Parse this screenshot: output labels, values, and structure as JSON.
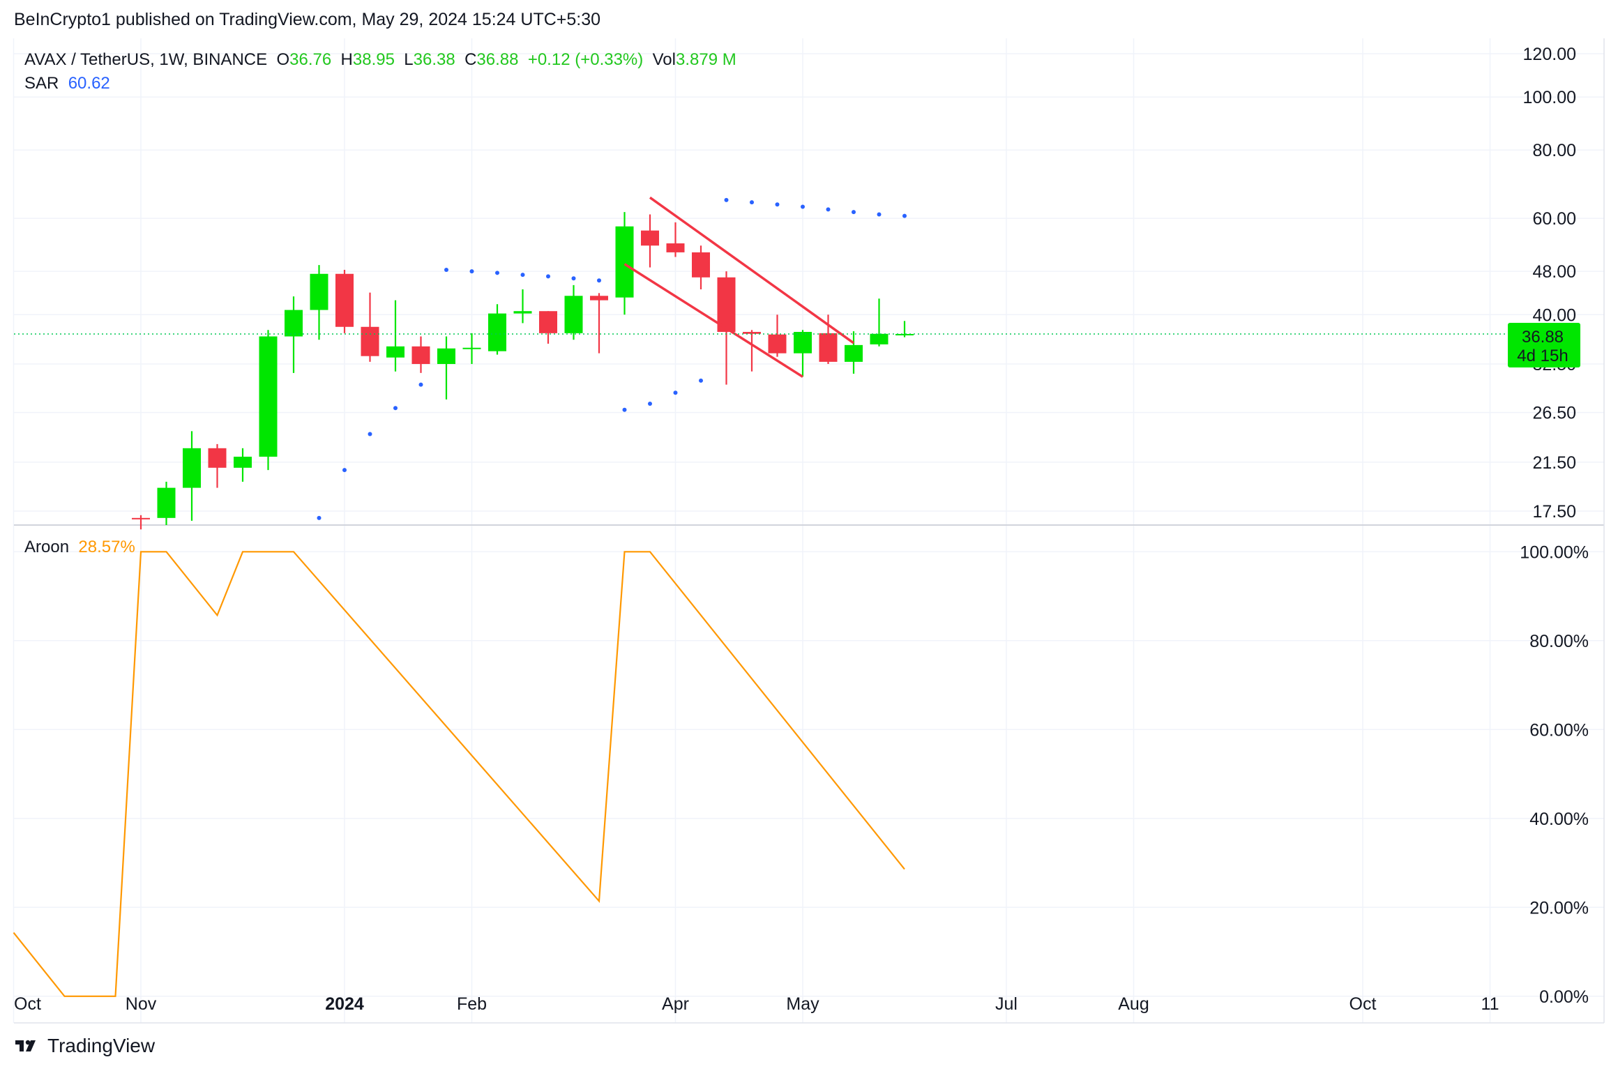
{
  "header": {
    "published_line": "BeInCrypto1 published on TradingView.com, May 29, 2024 15:24 UTC+5:30"
  },
  "footer": {
    "brand": "TradingView"
  },
  "colors": {
    "up": "#00e600",
    "down": "#f23645",
    "sar": "#2962ff",
    "aroon": "#ff9800",
    "channel": "#f23645",
    "last_price_line": "#00c853",
    "grid": "#f0f3fa"
  },
  "legend": {
    "symbol": "AVAX / TetherUS, 1W, BINANCE",
    "o_label": "O",
    "o_value": "36.76",
    "h_label": "H",
    "h_value": "38.95",
    "l_label": "L",
    "l_value": "36.38",
    "c_label": "C",
    "c_value": "36.88",
    "change": "+0.12 (+0.33%)",
    "vol_label": "Vol",
    "vol_value": "3.879 M",
    "sar_label": "SAR",
    "sar_value": "60.62",
    "aroon_label": "Aroon",
    "aroon_value": "28.57%"
  },
  "price_badge": {
    "price": "36.88",
    "countdown": "4d 15h"
  },
  "chart_data": [
    {
      "type": "candlestick",
      "title": "AVAX / TetherUS, 1W, BINANCE",
      "y_scale": "log",
      "ylim": [
        16.5,
        128
      ],
      "y_ticks": [
        "120.00",
        "100.00",
        "80.00",
        "60.00",
        "48.00",
        "40.00",
        "32.50",
        "26.50",
        "21.50",
        "17.50"
      ],
      "x_ticks": [
        "Oct",
        "Nov",
        "2024",
        "Feb",
        "Apr",
        "May",
        "Jul",
        "Aug",
        "Oct",
        "11"
      ],
      "x_tick_weeks": [
        -5,
        0,
        8,
        13,
        21,
        26,
        34,
        39,
        48,
        53
      ],
      "candles": [
        {
          "week": 0,
          "o": 17.0,
          "h": 17.2,
          "l": 16.2,
          "c": 16.9
        },
        {
          "week": 1,
          "o": 17.0,
          "h": 19.8,
          "l": 16.5,
          "c": 19.3
        },
        {
          "week": 2,
          "o": 19.3,
          "h": 24.5,
          "l": 16.8,
          "c": 22.8
        },
        {
          "week": 3,
          "o": 22.8,
          "h": 23.2,
          "l": 19.3,
          "c": 21.0
        },
        {
          "week": 4,
          "o": 21.0,
          "h": 22.8,
          "l": 19.8,
          "c": 22.0
        },
        {
          "week": 5,
          "o": 22.0,
          "h": 37.5,
          "l": 20.8,
          "c": 36.5
        },
        {
          "week": 6,
          "o": 36.5,
          "h": 43.2,
          "l": 31.3,
          "c": 40.8
        },
        {
          "week": 7,
          "o": 40.8,
          "h": 49.3,
          "l": 36.0,
          "c": 47.5
        },
        {
          "week": 8,
          "o": 47.5,
          "h": 48.3,
          "l": 37.0,
          "c": 38.0
        },
        {
          "week": 9,
          "o": 38.0,
          "h": 43.9,
          "l": 32.8,
          "c": 33.6
        },
        {
          "week": 10,
          "o": 33.4,
          "h": 42.5,
          "l": 31.5,
          "c": 35.0
        },
        {
          "week": 11,
          "o": 35.0,
          "h": 36.5,
          "l": 31.3,
          "c": 32.5
        },
        {
          "week": 12,
          "o": 32.5,
          "h": 36.5,
          "l": 28.0,
          "c": 34.7
        },
        {
          "week": 13,
          "o": 34.7,
          "h": 37.0,
          "l": 32.5,
          "c": 34.8
        },
        {
          "week": 14,
          "o": 34.3,
          "h": 41.8,
          "l": 33.8,
          "c": 40.2
        },
        {
          "week": 15,
          "o": 40.2,
          "h": 44.5,
          "l": 38.6,
          "c": 40.6
        },
        {
          "week": 16,
          "o": 40.6,
          "h": 40.6,
          "l": 35.4,
          "c": 37.0
        },
        {
          "week": 17,
          "o": 37.0,
          "h": 45.3,
          "l": 36.0,
          "c": 43.3
        },
        {
          "week": 18,
          "o": 43.3,
          "h": 43.8,
          "l": 34.0,
          "c": 42.5
        },
        {
          "week": 19,
          "o": 43.0,
          "h": 61.6,
          "l": 40.0,
          "c": 58.0
        },
        {
          "week": 20,
          "o": 57.0,
          "h": 61.0,
          "l": 48.8,
          "c": 53.5
        },
        {
          "week": 21,
          "o": 54.0,
          "h": 59.0,
          "l": 51.0,
          "c": 52.0
        },
        {
          "week": 22,
          "o": 52.0,
          "h": 53.5,
          "l": 44.5,
          "c": 46.8
        },
        {
          "week": 23,
          "o": 46.8,
          "h": 48.0,
          "l": 29.8,
          "c": 37.2
        },
        {
          "week": 24,
          "o": 37.2,
          "h": 37.5,
          "l": 31.5,
          "c": 36.9
        },
        {
          "week": 25,
          "o": 36.8,
          "h": 40.0,
          "l": 33.5,
          "c": 34.0
        },
        {
          "week": 26,
          "o": 34.0,
          "h": 37.5,
          "l": 30.8,
          "c": 37.2
        },
        {
          "week": 27,
          "o": 37.0,
          "h": 40.0,
          "l": 32.5,
          "c": 32.8
        },
        {
          "week": 28,
          "o": 32.8,
          "h": 37.3,
          "l": 31.2,
          "c": 35.2
        },
        {
          "week": 29,
          "o": 35.3,
          "h": 42.8,
          "l": 35.0,
          "c": 36.9
        },
        {
          "week": 30,
          "o": 36.76,
          "h": 38.95,
          "l": 36.38,
          "c": 36.88
        }
      ],
      "sar": [
        {
          "week": 7,
          "value": 17.0
        },
        {
          "week": 8,
          "value": 20.8
        },
        {
          "week": 9,
          "value": 24.2
        },
        {
          "week": 10,
          "value": 27.0
        },
        {
          "week": 11,
          "value": 29.8
        },
        {
          "week": 12,
          "value": 48.3
        },
        {
          "week": 13,
          "value": 48.0
        },
        {
          "week": 14,
          "value": 47.7
        },
        {
          "week": 15,
          "value": 47.3
        },
        {
          "week": 16,
          "value": 47.0
        },
        {
          "week": 17,
          "value": 46.6
        },
        {
          "week": 18,
          "value": 46.2
        },
        {
          "week": 19,
          "value": 26.8
        },
        {
          "week": 20,
          "value": 27.5
        },
        {
          "week": 21,
          "value": 28.8
        },
        {
          "week": 22,
          "value": 30.3
        },
        {
          "week": 23,
          "value": 64.8
        },
        {
          "week": 24,
          "value": 64.2
        },
        {
          "week": 25,
          "value": 63.6
        },
        {
          "week": 26,
          "value": 63.0
        },
        {
          "week": 27,
          "value": 62.3
        },
        {
          "week": 28,
          "value": 61.6
        },
        {
          "week": 29,
          "value": 61.0
        },
        {
          "week": 30,
          "value": 60.62
        }
      ],
      "channel": {
        "upper": [
          {
            "week": 20,
            "value": 65.5
          },
          {
            "week": 28,
            "value": 35.5
          }
        ],
        "lower": [
          {
            "week": 19,
            "value": 49.5
          },
          {
            "week": 26,
            "value": 30.8
          }
        ]
      },
      "last_price": 36.88
    },
    {
      "type": "line",
      "title": "Aroon",
      "ylim": [
        -6,
        106
      ],
      "y_ticks": [
        "100.00%",
        "80.00%",
        "60.00%",
        "40.00%",
        "20.00%",
        "0.00%"
      ],
      "points": [
        {
          "week": -5,
          "value": 14.3
        },
        {
          "week": -3,
          "value": 0
        },
        {
          "week": -1,
          "value": 0
        },
        {
          "week": 0,
          "value": 100
        },
        {
          "week": 1,
          "value": 100
        },
        {
          "week": 3,
          "value": 85.7
        },
        {
          "week": 4,
          "value": 100
        },
        {
          "week": 6,
          "value": 100
        },
        {
          "week": 18,
          "value": 21.4
        },
        {
          "week": 19,
          "value": 100
        },
        {
          "week": 20,
          "value": 100
        },
        {
          "week": 30,
          "value": 28.57
        }
      ]
    }
  ]
}
